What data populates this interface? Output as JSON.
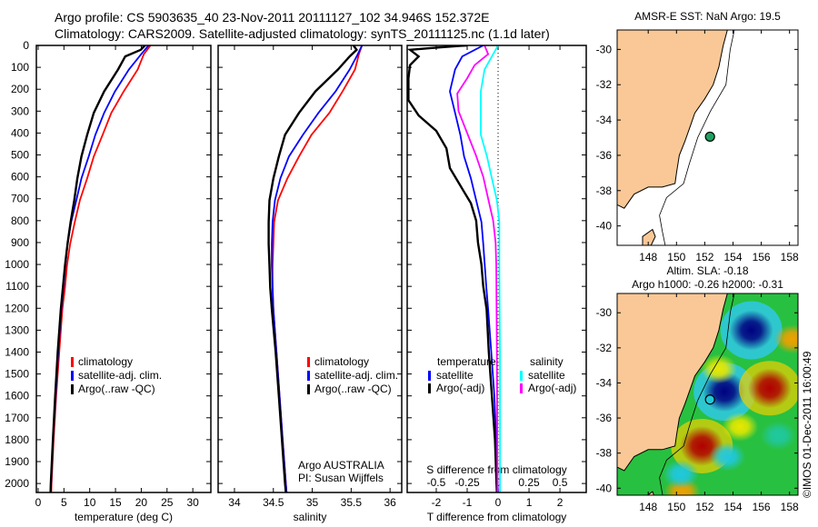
{
  "header": {
    "line1": "Argo profile: CS 5903635_40 23-Nov-2011 20111127_102 34.946S 152.372E",
    "line2": "Climatology: CARS2009. Satellite-adjusted climatology: synTS_20111125.nc (1.1d later)"
  },
  "depth_ticks": [
    "0",
    "100",
    "200",
    "300",
    "400",
    "500",
    "600",
    "700",
    "800",
    "900",
    "1000",
    "1100",
    "1200",
    "1300",
    "1400",
    "1500",
    "1600",
    "1700",
    "1800",
    "1900",
    "2000"
  ],
  "chart_data": [
    {
      "type": "line",
      "id": "temperature",
      "xlabel": "temperature (deg C)",
      "ylabel": "depth",
      "xlim": [
        -0.35,
        33.5
      ],
      "ylim": [
        2041,
        0
      ],
      "xticks": [
        0,
        5,
        10,
        15,
        20,
        25,
        30
      ],
      "xtick_labels": [
        "0",
        "5",
        "10",
        "15",
        "20",
        "25",
        "30"
      ],
      "legend": [
        "climatology",
        "satellite-adj. clim.",
        "Argo(..raw -QC)"
      ],
      "series": [
        {
          "name": "climatology",
          "color": "#ff0000",
          "points": [
            [
              21.8,
              0
            ],
            [
              20.5,
              40
            ],
            [
              19.3,
              110
            ],
            [
              16.6,
              210
            ],
            [
              14.2,
              308
            ],
            [
              12.5,
              408
            ],
            [
              10.8,
              507
            ],
            [
              9.5,
              607
            ],
            [
              8.1,
              707
            ],
            [
              7.1,
              806
            ],
            [
              6.2,
              906
            ],
            [
              5.6,
              1005
            ],
            [
              5.2,
              1105
            ],
            [
              4.7,
              1205
            ],
            [
              4.1,
              1400
            ],
            [
              3.5,
              1600
            ],
            [
              3.0,
              1800
            ],
            [
              2.6,
              2000
            ],
            [
              2.55,
              2040
            ]
          ]
        },
        {
          "name": "satellite-adj. clim.",
          "color": "#0000ff",
          "points": [
            [
              21.4,
              0
            ],
            [
              20.0,
              40
            ],
            [
              17.6,
              110
            ],
            [
              14.9,
              210
            ],
            [
              12.8,
              308
            ],
            [
              11.1,
              408
            ],
            [
              9.8,
              507
            ],
            [
              8.4,
              607
            ],
            [
              7.4,
              707
            ],
            [
              6.4,
              806
            ],
            [
              5.7,
              906
            ],
            [
              5.3,
              1005
            ],
            [
              4.9,
              1105
            ],
            [
              4.5,
              1205
            ],
            [
              3.9,
              1400
            ],
            [
              3.4,
              1600
            ],
            [
              2.9,
              1800
            ],
            [
              2.5,
              2000
            ],
            [
              2.45,
              2040
            ]
          ]
        },
        {
          "name": "Argo(..raw -QC)",
          "color": "#000000",
          "points": [
            [
              20.7,
              0
            ],
            [
              19.9,
              20
            ],
            [
              16.9,
              50
            ],
            [
              15.5,
              110
            ],
            [
              12.8,
              210
            ],
            [
              10.8,
              308
            ],
            [
              9.5,
              408
            ],
            [
              8.4,
              507
            ],
            [
              7.6,
              607
            ],
            [
              7.0,
              707
            ],
            [
              6.3,
              806
            ],
            [
              5.7,
              906
            ],
            [
              5.2,
              1005
            ],
            [
              4.8,
              1105
            ],
            [
              4.4,
              1205
            ],
            [
              3.8,
              1400
            ],
            [
              3.3,
              1600
            ],
            [
              2.85,
              1800
            ],
            [
              2.45,
              2000
            ],
            [
              2.4,
              2040
            ]
          ]
        }
      ]
    },
    {
      "type": "line",
      "id": "salinity",
      "xlabel": "salinity",
      "ylabel": "depth",
      "xlim": [
        33.79,
        36.15
      ],
      "ylim": [
        2041,
        0
      ],
      "xticks": [
        34,
        34.5,
        35,
        35.5,
        36
      ],
      "xtick_labels": [
        "34",
        "34.5",
        "35",
        "35.5",
        "36"
      ],
      "legend": [
        "climatology",
        "satellite-adj. clim.",
        "Argo(..raw -QC)"
      ],
      "annotation": [
        "Argo AUSTRALIA",
        "PI: Susan Wijffels"
      ],
      "series": [
        {
          "name": "climatology",
          "color": "#ff0000",
          "points": [
            [
              35.64,
              0
            ],
            [
              35.6,
              40
            ],
            [
              35.55,
              110
            ],
            [
              35.39,
              210
            ],
            [
              35.22,
              308
            ],
            [
              34.99,
              408
            ],
            [
              34.83,
              507
            ],
            [
              34.68,
              607
            ],
            [
              34.56,
              707
            ],
            [
              34.51,
              806
            ],
            [
              34.5,
              906
            ],
            [
              34.49,
              1005
            ],
            [
              34.49,
              1105
            ],
            [
              34.5,
              1205
            ],
            [
              34.54,
              1400
            ],
            [
              34.58,
              1600
            ],
            [
              34.62,
              1800
            ],
            [
              34.66,
              2000
            ],
            [
              34.67,
              2040
            ]
          ]
        },
        {
          "name": "satellite-adj. clim.",
          "color": "#0000ff",
          "points": [
            [
              35.64,
              0
            ],
            [
              35.57,
              50
            ],
            [
              35.48,
              110
            ],
            [
              35.3,
              210
            ],
            [
              35.08,
              308
            ],
            [
              34.88,
              408
            ],
            [
              34.7,
              507
            ],
            [
              34.59,
              607
            ],
            [
              34.52,
              707
            ],
            [
              34.49,
              806
            ],
            [
              34.48,
              906
            ],
            [
              34.48,
              1005
            ],
            [
              34.49,
              1105
            ],
            [
              34.5,
              1205
            ],
            [
              34.54,
              1400
            ],
            [
              34.58,
              1600
            ],
            [
              34.62,
              1800
            ],
            [
              34.66,
              2000
            ],
            [
              34.67,
              2040
            ]
          ]
        },
        {
          "name": "Argo(..raw -QC)",
          "color": "#000000",
          "points": [
            [
              35.53,
              0
            ],
            [
              35.57,
              20
            ],
            [
              35.48,
              50
            ],
            [
              35.33,
              110
            ],
            [
              35.04,
              210
            ],
            [
              34.83,
              308
            ],
            [
              34.65,
              408
            ],
            [
              34.57,
              507
            ],
            [
              34.5,
              607
            ],
            [
              34.45,
              707
            ],
            [
              34.44,
              806
            ],
            [
              34.44,
              906
            ],
            [
              34.45,
              1005
            ],
            [
              34.46,
              1105
            ],
            [
              34.48,
              1205
            ],
            [
              34.53,
              1400
            ],
            [
              34.57,
              1600
            ],
            [
              34.61,
              1800
            ],
            [
              34.65,
              2000
            ],
            [
              34.66,
              2040
            ]
          ]
        }
      ]
    },
    {
      "type": "line",
      "id": "difference",
      "xlabel": "T difference from climatology",
      "x2label": "S difference from climatology",
      "ylabel": "depth",
      "xlim": [
        -2.94,
        2.85
      ],
      "ylim": [
        2041,
        0
      ],
      "xticks": [
        -2,
        -1,
        0,
        1,
        2
      ],
      "xtick_labels": [
        "-2",
        "-1",
        "0",
        "1",
        "2"
      ],
      "x2ticks": [
        -0.5,
        -0.25,
        0,
        0.25,
        0.5
      ],
      "x2tick_labels": [
        "-0.5",
        "-0.25",
        "0",
        "0.25",
        "0.5"
      ],
      "s_to_t_factor": 4,
      "legend": {
        "temperature_heading": "temperature",
        "salinity_heading": "salinity",
        "t_satellite": "satellite",
        "t_argo": "Argo(-adj)",
        "s_satellite": "satellite",
        "s_argo": "Argo(-adj)"
      },
      "series": [
        {
          "name": "T satellite",
          "var": "T",
          "color": "#0000ff",
          "points": [
            [
              -0.48,
              0
            ],
            [
              -1.16,
              50
            ],
            [
              -1.39,
              110
            ],
            [
              -1.56,
              210
            ],
            [
              -1.39,
              308
            ],
            [
              -1.22,
              408
            ],
            [
              -1.1,
              507
            ],
            [
              -0.88,
              607
            ],
            [
              -0.71,
              707
            ],
            [
              -0.54,
              806
            ],
            [
              -0.48,
              906
            ],
            [
              -0.43,
              1005
            ],
            [
              -0.38,
              1105
            ],
            [
              -0.32,
              1205
            ],
            [
              -0.22,
              1400
            ],
            [
              -0.12,
              1600
            ],
            [
              -0.06,
              1800
            ],
            [
              -0.02,
              2000
            ],
            [
              0,
              2040
            ]
          ]
        },
        {
          "name": "T Argo(-adj)",
          "var": "T",
          "color": "#000000",
          "points": [
            [
              -1.0,
              0
            ],
            [
              -2.0,
              10
            ],
            [
              -2.85,
              20
            ],
            [
              -2.57,
              50
            ],
            [
              -2.85,
              90
            ],
            [
              -2.9,
              150
            ],
            [
              -2.9,
              250
            ],
            [
              -2.57,
              320
            ],
            [
              -2.0,
              390
            ],
            [
              -1.67,
              470
            ],
            [
              -1.56,
              560
            ],
            [
              -1.22,
              640
            ],
            [
              -0.88,
              720
            ],
            [
              -0.71,
              800
            ],
            [
              -0.65,
              900
            ],
            [
              -0.54,
              1000
            ],
            [
              -0.48,
              1100
            ],
            [
              -0.37,
              1205
            ],
            [
              -0.3,
              1400
            ],
            [
              -0.2,
              1600
            ],
            [
              -0.1,
              1800
            ],
            [
              -0.05,
              2000
            ],
            [
              -0.04,
              2040
            ]
          ]
        },
        {
          "name": "S satellite",
          "var": "S",
          "color": "#00ffff",
          "points": [
            [
              0,
              0
            ],
            [
              -0.05,
              50
            ],
            [
              -0.11,
              110
            ],
            [
              -0.14,
              210
            ],
            [
              -0.14,
              308
            ],
            [
              -0.14,
              408
            ],
            [
              -0.09,
              507
            ],
            [
              -0.05,
              607
            ],
            [
              -0.01,
              707
            ],
            [
              0.01,
              806
            ],
            [
              0.01,
              1000
            ],
            [
              0.015,
              1400
            ],
            [
              0.015,
              2040
            ]
          ]
        },
        {
          "name": "S Argo(-adj)",
          "var": "S",
          "color": "#ff00ff",
          "points": [
            [
              -0.11,
              0
            ],
            [
              -0.08,
              40
            ],
            [
              -0.19,
              90
            ],
            [
              -0.25,
              150
            ],
            [
              -0.33,
              220
            ],
            [
              -0.32,
              300
            ],
            [
              -0.25,
              400
            ],
            [
              -0.18,
              500
            ],
            [
              -0.12,
              600
            ],
            [
              -0.08,
              700
            ],
            [
              -0.04,
              800
            ],
            [
              -0.02,
              900
            ],
            [
              -0.015,
              1000
            ],
            [
              -0.01,
              1400
            ],
            [
              -0.005,
              2040
            ]
          ]
        }
      ]
    }
  ],
  "maps": [
    {
      "id": "sst",
      "title": [
        "AMSR-E SST: NaN Argo: 19.5"
      ],
      "lon": [
        145.8,
        158.6
      ],
      "lat": [
        -28.9,
        -41.1
      ],
      "lat_ticks": [
        -30,
        -32,
        -34,
        -36,
        -38,
        -40
      ],
      "lon_ticks": [
        148,
        150,
        152,
        154,
        156,
        158
      ],
      "marker_color": "#20a060"
    },
    {
      "id": "sla",
      "title": [
        "Altim. SLA: -0.18",
        "Argo h1000: -0.26 h2000: -0.31"
      ],
      "lon": [
        145.8,
        158.6
      ],
      "lat": [
        -28.9,
        -40.4
      ],
      "lat_ticks": [
        -30,
        -32,
        -34,
        -36,
        -38,
        -40
      ],
      "lon_ticks": [
        148,
        150,
        152,
        154,
        156,
        158
      ],
      "marker_color": "#20c8d8"
    }
  ],
  "float_position": [
    152.372,
    -34.946
  ],
  "land_color": "#f9c896",
  "coast": [
    [
      153.6,
      -28.9
    ],
    [
      153.3,
      -29.8
    ],
    [
      153.0,
      -31.0
    ],
    [
      152.6,
      -32.0
    ],
    [
      152.0,
      -32.8
    ],
    [
      151.3,
      -33.6
    ],
    [
      151.0,
      -34.3
    ],
    [
      150.6,
      -35.2
    ],
    [
      150.2,
      -36.0
    ],
    [
      150.0,
      -37.0
    ],
    [
      149.9,
      -37.6
    ],
    [
      149.0,
      -37.8
    ],
    [
      148.0,
      -37.8
    ],
    [
      147.0,
      -38.2
    ],
    [
      146.3,
      -39.0
    ],
    [
      145.8,
      -38.8
    ]
  ],
  "isobath": [
    [
      154.1,
      -28.9
    ],
    [
      153.8,
      -30
    ],
    [
      153.5,
      -32
    ],
    [
      152.4,
      -33.5
    ],
    [
      151.5,
      -35
    ],
    [
      150.9,
      -36.5
    ],
    [
      150.5,
      -37.6
    ],
    [
      149.3,
      -38.4
    ],
    [
      148.8,
      -39.4
    ],
    [
      149.0,
      -40.3
    ],
    [
      149.2,
      -41.1
    ]
  ],
  "tasmania": [
    [
      147.6,
      -40.6
    ],
    [
      148.3,
      -40.2
    ],
    [
      148.5,
      -40.6
    ],
    [
      148.2,
      -41.1
    ],
    [
      147.6,
      -41.1
    ]
  ],
  "sla_features": [
    {
      "lon": 155.3,
      "lat": -31.0,
      "color": "#000080"
    },
    {
      "lon": 153.4,
      "lat": -34.5,
      "color": "#000080"
    },
    {
      "lon": 156.6,
      "lat": -34.3,
      "color": "#b00000"
    },
    {
      "lon": 151.8,
      "lat": -37.6,
      "color": "#b00000"
    },
    {
      "lon": 150.4,
      "lat": -40.2,
      "color": "#f0a000"
    },
    {
      "lon": 154.5,
      "lat": -36.5,
      "color": "#e8e800"
    },
    {
      "lon": 153.0,
      "lat": -33.2,
      "color": "#e8e800"
    },
    {
      "lon": 158.2,
      "lat": -31.5,
      "color": "#f0a000"
    },
    {
      "lon": 153.6,
      "lat": -38.2,
      "color": "#20c8e0"
    },
    {
      "lon": 150.3,
      "lat": -39.2,
      "color": "#20c8e0"
    },
    {
      "lon": 157.2,
      "lat": -37.0,
      "color": "#20c8a0"
    }
  ],
  "stamp": "©IMOS 01-Dec-2011 16:00:49"
}
